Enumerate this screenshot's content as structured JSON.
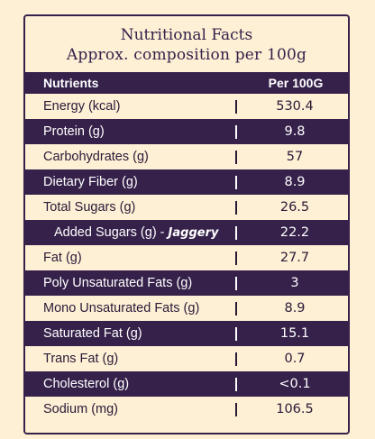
{
  "title_line1": "Nutritional Facts",
  "title_line2": "Approx. composition per 100g",
  "header": {
    "nutrients": "Nutrients",
    "per": "Per 100G"
  },
  "rows": [
    {
      "label": "Energy (kcal)",
      "value": "530.4"
    },
    {
      "label": "Protein (g)",
      "value": "9.8"
    },
    {
      "label": "Carbohydrates (g)",
      "value": "57"
    },
    {
      "label": "Dietary Fiber (g)",
      "value": "8.9"
    },
    {
      "label": "Total Sugars (g)",
      "value": "26.5"
    },
    {
      "label": "Added Sugars (g) - ",
      "note": "Jaggery",
      "value": "22.2"
    },
    {
      "label": "Fat (g)",
      "value": "27.7"
    },
    {
      "label": "Poly Unsaturated Fats (g)",
      "value": "3"
    },
    {
      "label": "Mono Unsaturated Fats (g)",
      "value": "8.9"
    },
    {
      "label": "Saturated Fat (g)",
      "value": "15.1"
    },
    {
      "label": "Trans Fat (g)",
      "value": "0.7"
    },
    {
      "label": "Cholesterol (g)",
      "value": "<0.1"
    },
    {
      "label": "Sodium (mg)",
      "value": "106.5"
    }
  ],
  "colors": {
    "background": "#fdf0d5",
    "dark_row": "#35214a",
    "text": "#2a1a37"
  }
}
